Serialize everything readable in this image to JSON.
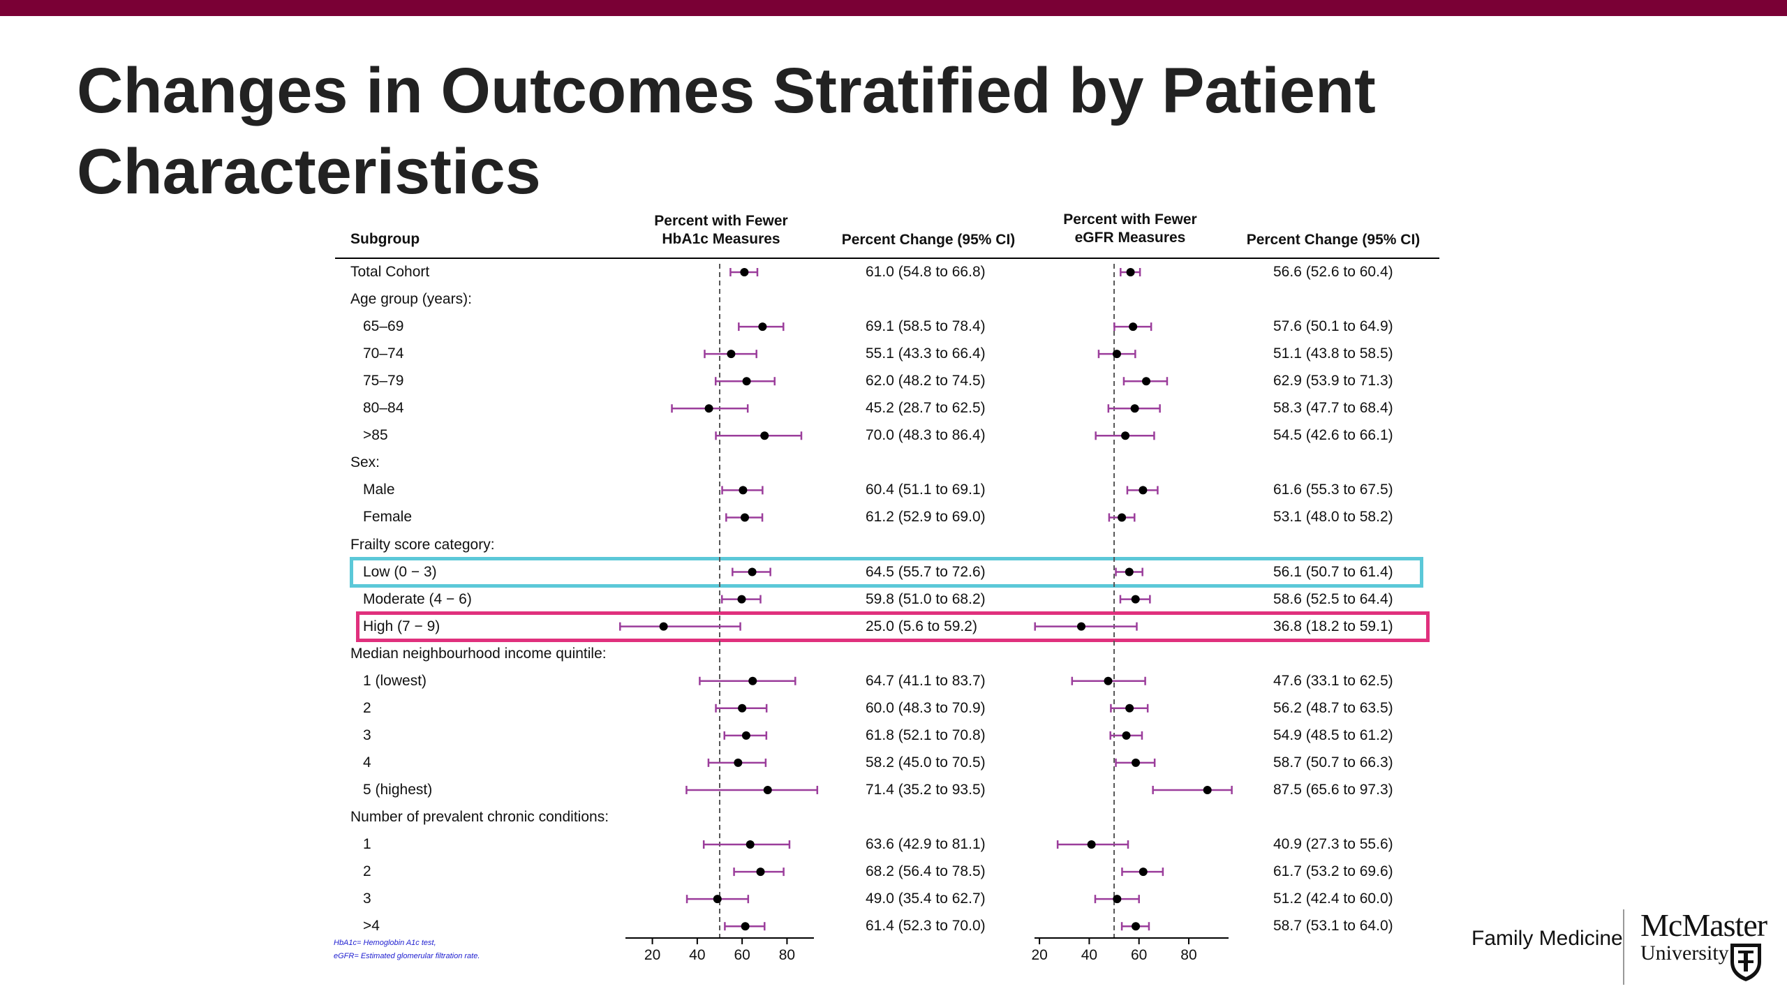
{
  "slide": {
    "title": "Changes in Outcomes Stratified by Patient Characteristics"
  },
  "brand": {
    "unit": "Family Medicine",
    "name_line1": "McMaster",
    "name_line2": "University",
    "logo_icon": "crest-icon",
    "bar_color": "#7a0035"
  },
  "footnotes": [
    "HbA1c= Hemoglobin A1c test,",
    "eGFR= Estimated glomerular filtration rate."
  ],
  "chart_data": {
    "type": "forest",
    "columns": {
      "subgroup": "Subgroup",
      "panel1": [
        "Percent with Fewer",
        "HbA1c Measures"
      ],
      "estimate1": "Percent Change (95% CI)",
      "panel2": [
        "Percent with Fewer",
        "eGFR Measures"
      ],
      "estimate2": "Percent Change (95% CI)"
    },
    "xticks": [
      20,
      40,
      60,
      80
    ],
    "xlim_hba1c": [
      8,
      92
    ],
    "xlim_egfr": [
      18,
      96
    ],
    "reference_line_hba1c": 50,
    "reference_line_egfr": 50,
    "marker_color": "#000000",
    "ci_color": "#9b3d9b",
    "highlight_colors": {
      "low": "#5bc8d8",
      "high": "#e0307d"
    },
    "rows": [
      {
        "label": "Total Cohort",
        "indent": 0,
        "hba1c": [
          61.0,
          54.8,
          66.8
        ],
        "hba1c_text": "61.0 (54.8 to 66.8)",
        "egfr": [
          56.6,
          52.6,
          60.4
        ],
        "egfr_text": "56.6 (52.6 to 60.4)"
      },
      {
        "label": "Age group (years):",
        "indent": 0,
        "header": true
      },
      {
        "label": "65–69",
        "indent": 1,
        "hba1c": [
          69.1,
          58.5,
          78.4
        ],
        "hba1c_text": "69.1 (58.5 to 78.4)",
        "egfr": [
          57.6,
          50.1,
          64.9
        ],
        "egfr_text": "57.6 (50.1 to 64.9)"
      },
      {
        "label": "70–74",
        "indent": 1,
        "hba1c": [
          55.1,
          43.3,
          66.4
        ],
        "hba1c_text": "55.1 (43.3 to 66.4)",
        "egfr": [
          51.1,
          43.8,
          58.5
        ],
        "egfr_text": "51.1 (43.8 to 58.5)"
      },
      {
        "label": "75–79",
        "indent": 1,
        "hba1c": [
          62.0,
          48.2,
          74.5
        ],
        "hba1c_text": "62.0 (48.2 to 74.5)",
        "egfr": [
          62.9,
          53.9,
          71.3
        ],
        "egfr_text": "62.9 (53.9 to 71.3)"
      },
      {
        "label": "80–84",
        "indent": 1,
        "hba1c": [
          45.2,
          28.7,
          62.5
        ],
        "hba1c_text": "45.2 (28.7 to 62.5)",
        "egfr": [
          58.3,
          47.7,
          68.4
        ],
        "egfr_text": "58.3 (47.7 to 68.4)"
      },
      {
        "label": ">85",
        "indent": 1,
        "hba1c": [
          70.0,
          48.3,
          86.4
        ],
        "hba1c_text": "70.0 (48.3 to 86.4)",
        "egfr": [
          54.5,
          42.6,
          66.1
        ],
        "egfr_text": "54.5 (42.6 to 66.1)"
      },
      {
        "label": "Sex:",
        "indent": 0,
        "header": true
      },
      {
        "label": "Male",
        "indent": 1,
        "hba1c": [
          60.4,
          51.1,
          69.1
        ],
        "hba1c_text": "60.4 (51.1 to 69.1)",
        "egfr": [
          61.6,
          55.3,
          67.5
        ],
        "egfr_text": "61.6 (55.3 to 67.5)"
      },
      {
        "label": "Female",
        "indent": 1,
        "hba1c": [
          61.2,
          52.9,
          69.0
        ],
        "hba1c_text": "61.2 (52.9 to 69.0)",
        "egfr": [
          53.1,
          48.0,
          58.2
        ],
        "egfr_text": "53.1 (48.0 to 58.2)"
      },
      {
        "label": "Frailty score category:",
        "indent": 0,
        "header": true
      },
      {
        "label": "Low (0 − 3)",
        "indent": 1,
        "highlight": "low",
        "hba1c": [
          64.5,
          55.7,
          72.6
        ],
        "hba1c_text": "64.5 (55.7 to 72.6)",
        "egfr": [
          56.1,
          50.7,
          61.4
        ],
        "egfr_text": "56.1 (50.7 to 61.4)"
      },
      {
        "label": "Moderate (4 − 6)",
        "indent": 1,
        "hba1c": [
          59.8,
          51.0,
          68.2
        ],
        "hba1c_text": "59.8 (51.0 to 68.2)",
        "egfr": [
          58.6,
          52.5,
          64.4
        ],
        "egfr_text": "58.6 (52.5 to 64.4)"
      },
      {
        "label": "High (7 − 9)",
        "indent": 1,
        "highlight": "high",
        "hba1c": [
          25.0,
          5.6,
          59.2
        ],
        "hba1c_text": "25.0 (5.6 to 59.2)",
        "egfr": [
          36.8,
          18.2,
          59.1
        ],
        "egfr_text": "36.8 (18.2 to 59.1)"
      },
      {
        "label": "Median neighbourhood income quintile:",
        "indent": 0,
        "header": true
      },
      {
        "label": "1 (lowest)",
        "indent": 1,
        "hba1c": [
          64.7,
          41.1,
          83.7
        ],
        "hba1c_text": "64.7 (41.1 to 83.7)",
        "egfr": [
          47.6,
          33.1,
          62.5
        ],
        "egfr_text": "47.6 (33.1 to 62.5)"
      },
      {
        "label": "2",
        "indent": 1,
        "hba1c": [
          60.0,
          48.3,
          70.9
        ],
        "hba1c_text": "60.0 (48.3 to 70.9)",
        "egfr": [
          56.2,
          48.7,
          63.5
        ],
        "egfr_text": "56.2 (48.7 to 63.5)"
      },
      {
        "label": "3",
        "indent": 1,
        "hba1c": [
          61.8,
          52.1,
          70.8
        ],
        "hba1c_text": "61.8 (52.1 to 70.8)",
        "egfr": [
          54.9,
          48.5,
          61.2
        ],
        "egfr_text": "54.9 (48.5 to 61.2)"
      },
      {
        "label": "4",
        "indent": 1,
        "hba1c": [
          58.2,
          45.0,
          70.5
        ],
        "hba1c_text": "58.2 (45.0 to 70.5)",
        "egfr": [
          58.7,
          50.7,
          66.3
        ],
        "egfr_text": "58.7 (50.7 to 66.3)"
      },
      {
        "label": "5 (highest)",
        "indent": 1,
        "hba1c": [
          71.4,
          35.2,
          93.5
        ],
        "hba1c_text": "71.4 (35.2 to 93.5)",
        "egfr": [
          87.5,
          65.6,
          97.3
        ],
        "egfr_text": "87.5 (65.6 to 97.3)"
      },
      {
        "label": "Number of prevalent chronic conditions:",
        "indent": 0,
        "header": true
      },
      {
        "label": "1",
        "indent": 1,
        "hba1c": [
          63.6,
          42.9,
          81.1
        ],
        "hba1c_text": "63.6 (42.9 to 81.1)",
        "egfr": [
          40.9,
          27.3,
          55.6
        ],
        "egfr_text": "40.9 (27.3 to 55.6)"
      },
      {
        "label": "2",
        "indent": 1,
        "hba1c": [
          68.2,
          56.4,
          78.5
        ],
        "hba1c_text": "68.2 (56.4 to 78.5)",
        "egfr": [
          61.7,
          53.2,
          69.6
        ],
        "egfr_text": "61.7 (53.2 to 69.6)"
      },
      {
        "label": "3",
        "indent": 1,
        "hba1c": [
          49.0,
          35.4,
          62.7
        ],
        "hba1c_text": "49.0 (35.4 to 62.7)",
        "egfr": [
          51.2,
          42.4,
          60.0
        ],
        "egfr_text": "51.2 (42.4 to 60.0)"
      },
      {
        "label": ">4",
        "indent": 1,
        "hba1c": [
          61.4,
          52.3,
          70.0
        ],
        "hba1c_text": "61.4 (52.3 to 70.0)",
        "egfr": [
          58.7,
          53.1,
          64.0
        ],
        "egfr_text": "58.7 (53.1 to 64.0)"
      }
    ]
  }
}
